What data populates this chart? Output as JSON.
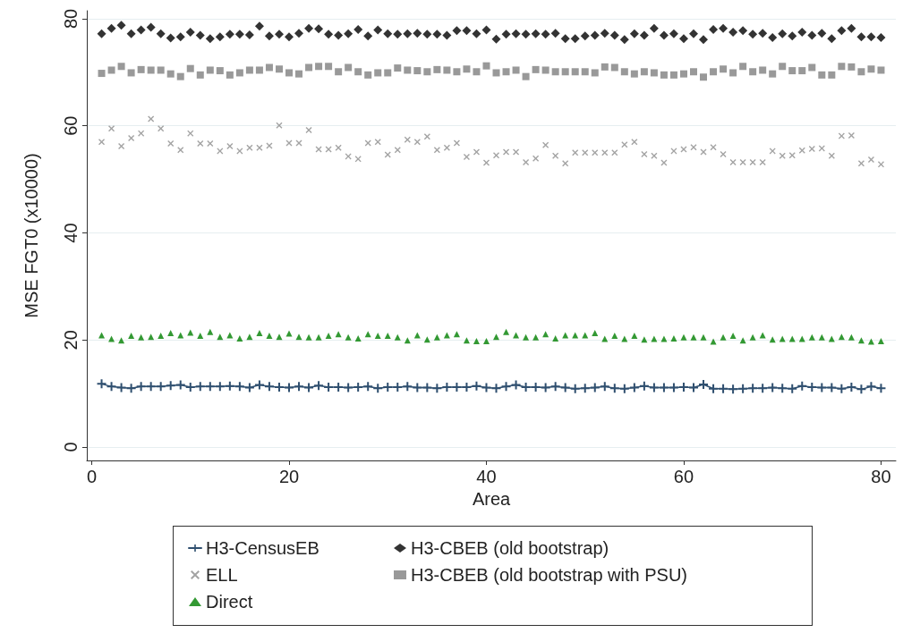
{
  "chart_data": {
    "type": "scatter",
    "xlabel": "Area",
    "ylabel": "MSE FGT0 (x10000)",
    "x": [
      1,
      2,
      3,
      4,
      5,
      6,
      7,
      8,
      9,
      10,
      11,
      12,
      13,
      14,
      15,
      16,
      17,
      18,
      19,
      20,
      21,
      22,
      23,
      24,
      25,
      26,
      27,
      28,
      29,
      30,
      31,
      32,
      33,
      34,
      35,
      36,
      37,
      38,
      39,
      40,
      41,
      42,
      43,
      44,
      45,
      46,
      47,
      48,
      49,
      50,
      51,
      52,
      53,
      54,
      55,
      56,
      57,
      58,
      59,
      60,
      61,
      62,
      63,
      64,
      65,
      66,
      67,
      68,
      69,
      70,
      71,
      72,
      73,
      74,
      75,
      76,
      77,
      78,
      79,
      80
    ],
    "xlim": [
      -0.5,
      81.5
    ],
    "xticks": [
      0,
      20,
      40,
      60,
      80
    ],
    "ylim": [
      -2.5,
      81.5
    ],
    "yticks": [
      0,
      20,
      40,
      60,
      80
    ],
    "grid": "y",
    "legend": "bottom",
    "series": [
      {
        "name": "H3-CensusEB",
        "type": "line",
        "marker": "cross",
        "color": "#2f4f6f",
        "values": [
          11.8,
          11.3,
          11.1,
          11.0,
          11.3,
          11.3,
          11.3,
          11.5,
          11.6,
          11.2,
          11.3,
          11.3,
          11.3,
          11.4,
          11.3,
          11.1,
          11.6,
          11.3,
          11.2,
          11.1,
          11.3,
          11.1,
          11.5,
          11.2,
          11.2,
          11.1,
          11.2,
          11.3,
          11.0,
          11.2,
          11.2,
          11.3,
          11.1,
          11.1,
          11.0,
          11.2,
          11.2,
          11.2,
          11.4,
          11.1,
          11.0,
          11.3,
          11.6,
          11.2,
          11.2,
          11.1,
          11.3,
          11.1,
          10.9,
          11.0,
          11.1,
          11.3,
          11.0,
          10.9,
          11.1,
          11.4,
          11.1,
          11.1,
          11.1,
          11.2,
          11.1,
          11.7,
          10.9,
          10.9,
          10.8,
          10.9,
          11.0,
          11.0,
          11.1,
          11.0,
          10.9,
          11.4,
          11.2,
          11.1,
          11.1,
          10.9,
          11.2,
          10.8,
          11.3,
          11.0
        ]
      },
      {
        "name": "ELL",
        "marker": "cross",
        "color": "#8c8c8c",
        "values": [
          57.0,
          59.5,
          56.2,
          57.7,
          58.6,
          61.3,
          59.5,
          56.7,
          55.5,
          58.6,
          56.7,
          56.7,
          55.3,
          56.2,
          55.3,
          55.9,
          55.9,
          56.3,
          60.1,
          56.8,
          56.8,
          59.2,
          55.6,
          55.6,
          55.9,
          54.3,
          53.8,
          56.8,
          57.0,
          54.6,
          55.5,
          57.4,
          57.0,
          58.0,
          55.5,
          55.9,
          56.8,
          54.2,
          55.1,
          53.1,
          54.5,
          55.1,
          55.1,
          53.2,
          53.9,
          56.4,
          54.4,
          53.0,
          55.0,
          55.0,
          55.0,
          55.0,
          55.0,
          56.5,
          57.0,
          54.7,
          54.4,
          53.1,
          55.3,
          55.6,
          56.0,
          55.1,
          56.0,
          54.7,
          53.2,
          53.2,
          53.2,
          53.2,
          55.3,
          54.4,
          54.5,
          55.4,
          55.7,
          55.8,
          54.4,
          58.1,
          58.2,
          53.0,
          53.7,
          52.8
        ]
      },
      {
        "name": "Direct",
        "marker": "triangle",
        "color": "#008000",
        "values": [
          20.9,
          20.2,
          19.9,
          20.8,
          20.5,
          20.6,
          20.8,
          21.3,
          20.9,
          21.4,
          20.8,
          21.5,
          20.6,
          20.9,
          20.3,
          20.6,
          21.3,
          20.8,
          20.6,
          21.2,
          20.6,
          20.5,
          20.5,
          20.8,
          21.1,
          20.5,
          20.3,
          21.1,
          20.8,
          20.8,
          20.5,
          19.9,
          20.9,
          20.1,
          20.5,
          20.9,
          21.1,
          19.9,
          19.8,
          19.8,
          20.6,
          21.5,
          20.9,
          20.5,
          20.5,
          21.1,
          20.3,
          20.9,
          20.9,
          20.9,
          21.3,
          20.2,
          20.8,
          20.2,
          20.8,
          20.1,
          20.2,
          20.2,
          20.3,
          20.5,
          20.5,
          20.5,
          19.7,
          20.5,
          20.8,
          19.9,
          20.5,
          20.9,
          20.1,
          20.2,
          20.2,
          20.2,
          20.5,
          20.5,
          20.2,
          20.6,
          20.5,
          19.9,
          19.7,
          19.8
        ]
      },
      {
        "name": "H3-CBEB (old bootstrap)",
        "marker": "diamond",
        "color": "#000000",
        "values": [
          77.2,
          78.2,
          78.8,
          77.2,
          77.9,
          78.4,
          77.2,
          76.4,
          76.6,
          77.5,
          76.9,
          76.3,
          76.6,
          77.1,
          77.1,
          77.0,
          78.6,
          76.8,
          77.1,
          76.6,
          77.3,
          78.2,
          78.1,
          77.1,
          76.9,
          77.2,
          78.0,
          76.8,
          77.9,
          77.2,
          77.1,
          77.2,
          77.3,
          77.1,
          77.1,
          76.9,
          77.8,
          77.8,
          77.2,
          77.9,
          76.2,
          77.1,
          77.2,
          77.1,
          77.2,
          77.1,
          77.3,
          76.3,
          76.3,
          76.8,
          76.9,
          77.3,
          76.9,
          76.1,
          77.2,
          76.9,
          78.2,
          76.9,
          77.2,
          76.3,
          77.2,
          76.1,
          78.0,
          78.2,
          77.5,
          77.8,
          77.1,
          77.3,
          76.5,
          77.2,
          76.8,
          77.5,
          76.9,
          77.3,
          76.3,
          77.8,
          78.2,
          76.6,
          76.6,
          76.5
        ]
      },
      {
        "name": "H3-CBEB (old bootstrap with PSU)",
        "marker": "square",
        "color": "#7f7f7f",
        "values": [
          69.8,
          70.4,
          71.1,
          69.9,
          70.5,
          70.4,
          70.4,
          69.7,
          69.2,
          70.7,
          69.5,
          70.4,
          70.3,
          69.5,
          69.9,
          70.4,
          70.4,
          70.9,
          70.6,
          69.9,
          69.7,
          70.9,
          71.1,
          71.1,
          70.1,
          70.9,
          70.1,
          69.5,
          69.9,
          69.9,
          70.8,
          70.4,
          70.3,
          70.1,
          70.5,
          70.4,
          70.1,
          70.6,
          70.1,
          71.2,
          69.9,
          70.1,
          70.4,
          69.2,
          70.5,
          70.4,
          70.1,
          70.1,
          70.1,
          70.1,
          69.9,
          71.0,
          70.9,
          70.1,
          69.7,
          70.1,
          69.9,
          69.5,
          69.5,
          69.7,
          70.1,
          69.1,
          70.1,
          70.6,
          69.9,
          71.1,
          70.1,
          70.4,
          69.7,
          71.1,
          70.3,
          70.3,
          70.9,
          69.5,
          69.5,
          71.1,
          71.0,
          70.1,
          70.6,
          70.4
        ]
      }
    ]
  }
}
